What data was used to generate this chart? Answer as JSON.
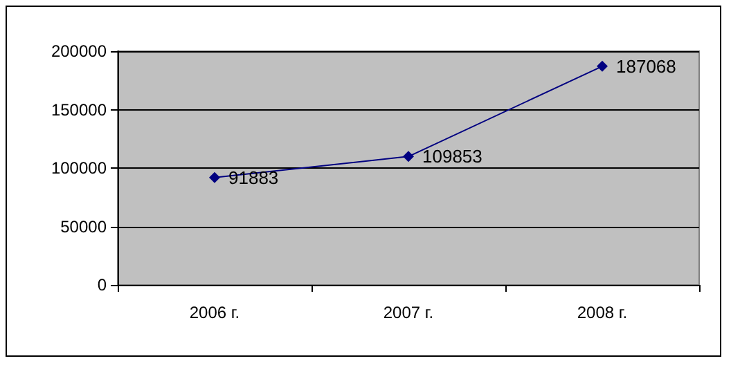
{
  "chart_data": {
    "type": "line",
    "categories": [
      "2006 г.",
      "2007 г.",
      "2008 г."
    ],
    "series": [
      {
        "color": "#000080",
        "values": [
          91883,
          109853,
          187068
        ]
      }
    ],
    "ylim": [
      0,
      200000
    ],
    "yticks": [
      0,
      50000,
      100000,
      150000,
      200000
    ],
    "grid": "y",
    "marker": "diamond",
    "line_style": "solid",
    "data_labels": true
  }
}
